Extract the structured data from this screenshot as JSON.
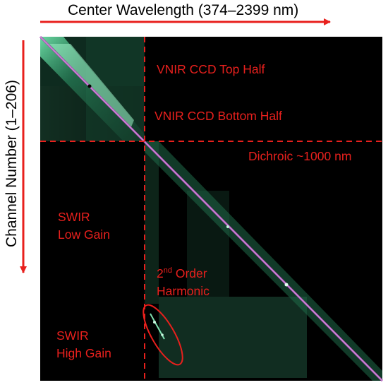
{
  "figure": {
    "x_axis_title": "Center Wavelength (374–2399 nm)",
    "y_axis_title": "Channel Number (1–206)",
    "colors": {
      "annotation": "#e8201d",
      "background": "#000000",
      "signal": "#3fae7c",
      "diagonal": "#b044b8"
    }
  },
  "labels": {
    "vnir_top": "VNIR CCD Top Half",
    "vnir_bottom": "VNIR CCD Bottom Half",
    "dichroic": "Dichroic ~1000 nm",
    "swir_low_line1": "SWIR",
    "swir_low_line2": "Low Gain",
    "harmonic_ord": "2",
    "harmonic_sup": "nd",
    "harmonic_line1_rest": " Order",
    "harmonic_line2": "Harmonic",
    "swir_high_line1": "SWIR",
    "swir_high_line2": "High Gain"
  }
}
